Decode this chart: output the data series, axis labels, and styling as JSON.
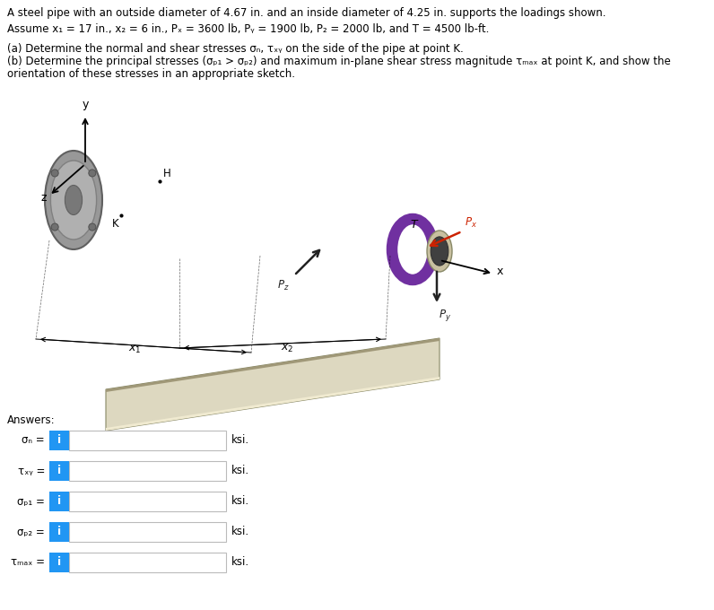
{
  "line1": "A steel pipe with an outside diameter of 4.67 in. and an inside diameter of 4.25 in. supports the loadings shown.",
  "line2": "Assume x₁ = 17 in., x₂ = 6 in., Pₓ = 3600 lb, Pᵧ = 1900 lb, P₂ = 2000 lb, and T = 4500 lb-ft.",
  "part_a": "(a) Determine the normal and shear stresses σₙ, τₓᵧ on the side of the pipe at point K.",
  "part_b1": "(b) Determine the principal stresses (σₚ₁ > σₚ₂) and maximum in-plane shear stress magnitude τₘₐₓ at point K, and show the",
  "part_b2": "orientation of these stresses in an appropriate sketch.",
  "answers_label": "Answers:",
  "rows": [
    {
      "label": "σₙ =",
      "unit": "ksi."
    },
    {
      "label": "τₓᵧ =",
      "unit": "ksi."
    },
    {
      "label": "σₚ₁ =",
      "unit": "ksi."
    },
    {
      "label": "σₚ₂ =",
      "unit": "ksi."
    },
    {
      "label": "τₘₐₓ =",
      "unit": "ksi."
    }
  ],
  "bg": "#ffffff",
  "text_color": "#000000",
  "btn_color": "#2196F3",
  "box_border": "#bbbbbb",
  "pipe_top_color": "#ddd8c0",
  "pipe_side_color": "#c8c0a0",
  "pipe_bottom_color": "#b0a888",
  "flange_color": "#909090",
  "flange_edge": "#606060",
  "ring_color": "#7030A0",
  "px_color": "#cc2200",
  "py_color": "#222222",
  "pz_color": "#222222",
  "dim_line_color": "#000000"
}
